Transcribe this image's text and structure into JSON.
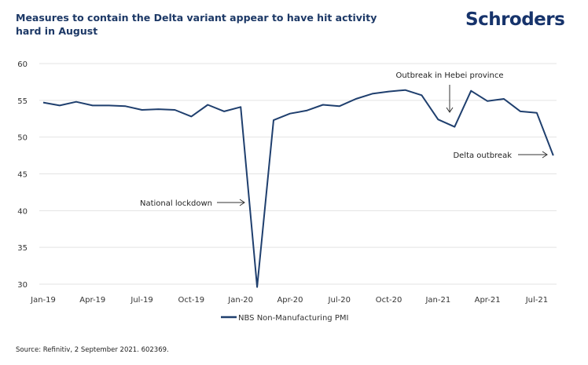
{
  "header": {
    "title": "Measures to contain the Delta variant appear to have hit activity hard in August",
    "logo": "Schroders"
  },
  "footer": {
    "source": "Source: Refinitiv, 2 September 2021. 602369."
  },
  "colors": {
    "series": "#1f3f6e",
    "title": "#1c3866",
    "grid": "#e3e3e3",
    "arrow": "#333333"
  },
  "chart_data": {
    "type": "line",
    "title": "Measures to contain the Delta variant appear to have hit activity hard in August",
    "xlabel": "",
    "ylabel": "",
    "ylim": [
      30,
      60
    ],
    "yticks": [
      60,
      55,
      50,
      45,
      40,
      35,
      30
    ],
    "grid": true,
    "legend": "bottom-center",
    "xtick_labels": [
      "Jan-19",
      "Apr-19",
      "Jul-19",
      "Oct-19",
      "Jan-20",
      "Apr-20",
      "Jul-20",
      "Oct-20",
      "Jan-21",
      "Apr-21",
      "Jul-21"
    ],
    "x": [
      "Jan-19",
      "Feb-19",
      "Mar-19",
      "Apr-19",
      "May-19",
      "Jun-19",
      "Jul-19",
      "Aug-19",
      "Sep-19",
      "Oct-19",
      "Nov-19",
      "Dec-19",
      "Jan-20",
      "Feb-20",
      "Mar-20",
      "Apr-20",
      "May-20",
      "Jun-20",
      "Jul-20",
      "Aug-20",
      "Sep-20",
      "Oct-20",
      "Nov-20",
      "Dec-20",
      "Jan-21",
      "Feb-21",
      "Mar-21",
      "Apr-21",
      "May-21",
      "Jun-21",
      "Jul-21",
      "Aug-21"
    ],
    "series": [
      {
        "name": "NBS Non-Manufacturing PMI",
        "values": [
          54.7,
          54.3,
          54.8,
          54.3,
          54.3,
          54.2,
          53.7,
          53.8,
          53.7,
          52.8,
          54.4,
          53.5,
          54.1,
          29.6,
          52.3,
          53.2,
          53.6,
          54.4,
          54.2,
          55.2,
          55.9,
          56.2,
          56.4,
          55.7,
          52.4,
          51.4,
          56.3,
          54.9,
          55.2,
          53.5,
          53.3,
          47.5
        ]
      }
    ],
    "annotations": [
      {
        "text": "National lockdown",
        "arrow": "right",
        "target": "Feb-20"
      },
      {
        "text": "Outbreak in Hebei province",
        "arrow": "down",
        "target": "Jan-21"
      },
      {
        "text": "Delta outbreak",
        "arrow": "right",
        "target": "Aug-21"
      }
    ]
  }
}
